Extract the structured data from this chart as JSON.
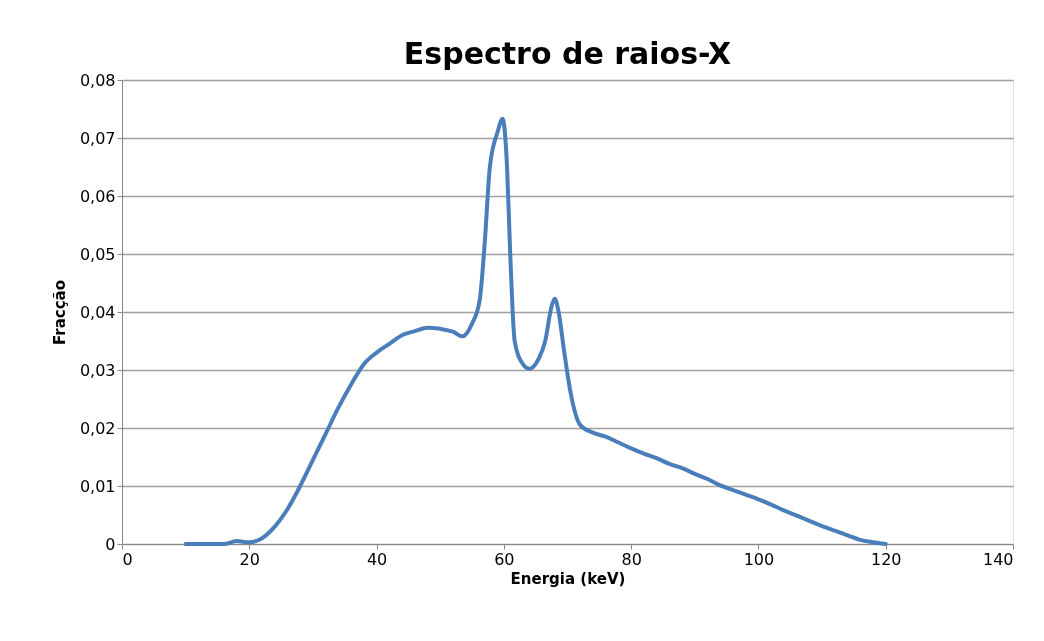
{
  "chart_data": {
    "type": "line",
    "title": "Espectro de raios-X",
    "xlabel": "Energia (keV)",
    "ylabel": "Fracção",
    "x": [
      10,
      12,
      14,
      16,
      18,
      20,
      22,
      24,
      26,
      28,
      30,
      32,
      34,
      36,
      38,
      40,
      42,
      44,
      46,
      48,
      50,
      52,
      53.5,
      55,
      56.2,
      57,
      57.8,
      59,
      59.8,
      60.5,
      61,
      61.7,
      63,
      64,
      65.5,
      66.5,
      67.5,
      68,
      68.6,
      69.5,
      70.5,
      72,
      74,
      76,
      78,
      80,
      82,
      84,
      86,
      88,
      90,
      92,
      94,
      96,
      98,
      100,
      102,
      104,
      106,
      108,
      110,
      112,
      114,
      116,
      118,
      120
    ],
    "series": [
      {
        "color": "#4a7ebb",
        "values": [
          0,
          0,
          0,
          0,
          0.0005,
          0.0003,
          0.001,
          0.003,
          0.006,
          0.01,
          0.0145,
          0.019,
          0.0235,
          0.0275,
          0.031,
          0.033,
          0.0345,
          0.036,
          0.0367,
          0.0373,
          0.0371,
          0.0366,
          0.0358,
          0.038,
          0.042,
          0.052,
          0.065,
          0.071,
          0.0733,
          0.065,
          0.05,
          0.035,
          0.031,
          0.0302,
          0.032,
          0.035,
          0.041,
          0.0423,
          0.04,
          0.033,
          0.026,
          0.0205,
          0.0192,
          0.0185,
          0.0175,
          0.0165,
          0.0156,
          0.0148,
          0.0138,
          0.0131,
          0.0121,
          0.0112,
          0.0101,
          0.0093,
          0.0085,
          0.0077,
          0.0068,
          0.0058,
          0.0049,
          0.004,
          0.0031,
          0.0023,
          0.0015,
          0.0007,
          0.0003,
          0
        ]
      }
    ],
    "xlim": [
      0,
      140
    ],
    "xticks": [
      0,
      20,
      40,
      60,
      80,
      100,
      120,
      140
    ],
    "ylim": [
      0,
      0.08
    ],
    "yticks": [
      0,
      {
        "value": 0.01,
        "label": "0,01"
      },
      {
        "value": 0.02,
        "label": "0,02"
      },
      {
        "value": 0.03,
        "label": "0,03"
      },
      {
        "value": 0.04,
        "label": "0,04"
      },
      {
        "value": 0.05,
        "label": "0,05"
      },
      {
        "value": 0.06,
        "label": "0,06"
      },
      {
        "value": 0.07,
        "label": "0,07"
      },
      {
        "value": 0.08,
        "label": "0,08"
      }
    ],
    "grid": "y",
    "marker": "none",
    "line_style": "solid"
  }
}
